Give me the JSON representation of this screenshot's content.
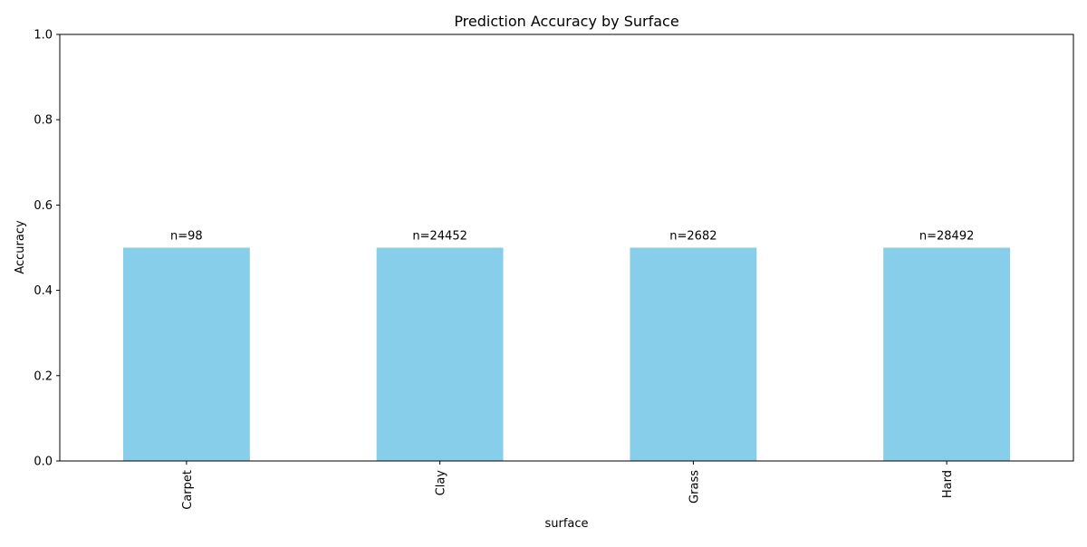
{
  "chart_data": {
    "type": "bar",
    "title": "Prediction Accuracy by Surface",
    "xlabel": "surface",
    "ylabel": "Accuracy",
    "categories": [
      "Carpet",
      "Clay",
      "Grass",
      "Hard"
    ],
    "values": [
      0.5,
      0.5,
      0.5,
      0.5
    ],
    "bar_labels": [
      "n=98",
      "n=24452",
      "n=2682",
      "n=28492"
    ],
    "ylim": [
      0,
      1.0
    ],
    "yticks": [
      "0.0",
      "0.2",
      "0.4",
      "0.6",
      "0.8",
      "1.0"
    ],
    "grid": false,
    "bar_color": "#87CEEB"
  }
}
